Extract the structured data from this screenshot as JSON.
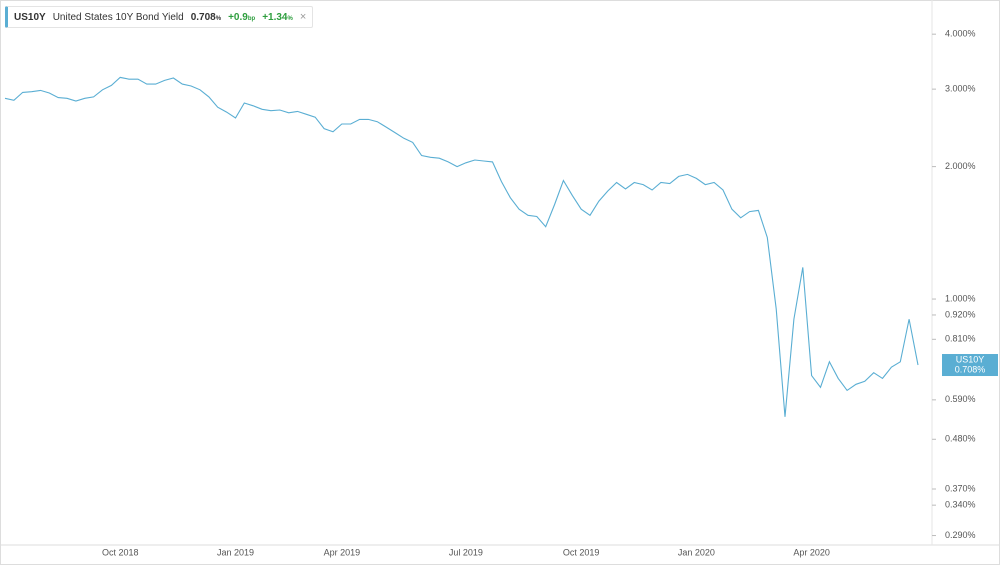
{
  "header": {
    "symbol": "US10Y",
    "name": "United States 10Y Bond Yield",
    "price": "0.708",
    "price_unit": "%",
    "change": "+0.9",
    "change_unit": "bp",
    "change_pct": "+1.34",
    "change_pct_unit": "%",
    "close": "×"
  },
  "chart_data": {
    "type": "line",
    "log_scale": true,
    "grid": false,
    "categories": [
      null,
      null,
      null,
      null,
      null,
      null,
      null,
      null,
      null,
      null,
      null,
      null,
      null,
      "Oct 2018",
      null,
      null,
      null,
      null,
      null,
      null,
      null,
      null,
      null,
      null,
      null,
      null,
      "Jan 2019",
      null,
      null,
      null,
      null,
      null,
      null,
      null,
      null,
      null,
      null,
      null,
      "Apr 2019",
      null,
      null,
      null,
      null,
      null,
      null,
      null,
      null,
      null,
      null,
      null,
      null,
      null,
      "Jul 2019",
      null,
      null,
      null,
      null,
      null,
      null,
      null,
      null,
      null,
      null,
      null,
      null,
      "Oct 2019",
      null,
      null,
      null,
      null,
      null,
      null,
      null,
      null,
      null,
      null,
      null,
      null,
      "Jan 2020",
      null,
      null,
      null,
      null,
      null,
      null,
      null,
      null,
      null,
      null,
      null,
      null,
      "Apr 2020",
      null,
      null,
      null,
      null,
      null,
      null,
      null,
      null,
      null,
      null,
      null,
      null
    ],
    "series": [
      {
        "name": "US10Y",
        "color": "#5aaed3",
        "value_label": "0.708%",
        "values": [
          2.86,
          2.83,
          2.95,
          2.96,
          2.98,
          2.94,
          2.87,
          2.86,
          2.82,
          2.86,
          2.88,
          2.99,
          3.06,
          3.19,
          3.16,
          3.16,
          3.08,
          3.08,
          3.14,
          3.18,
          3.08,
          3.05,
          2.99,
          2.88,
          2.73,
          2.66,
          2.58,
          2.79,
          2.75,
          2.7,
          2.68,
          2.69,
          2.65,
          2.67,
          2.63,
          2.59,
          2.44,
          2.4,
          2.5,
          2.5,
          2.56,
          2.56,
          2.53,
          2.46,
          2.39,
          2.32,
          2.27,
          2.12,
          2.1,
          2.09,
          2.05,
          2.0,
          2.04,
          2.07,
          2.06,
          2.05,
          1.85,
          1.7,
          1.6,
          1.55,
          1.54,
          1.46,
          1.64,
          1.86,
          1.72,
          1.6,
          1.55,
          1.67,
          1.76,
          1.84,
          1.78,
          1.84,
          1.82,
          1.77,
          1.84,
          1.83,
          1.9,
          1.92,
          1.88,
          1.82,
          1.84,
          1.77,
          1.6,
          1.53,
          1.58,
          1.59,
          1.38,
          0.95,
          0.54,
          0.9,
          1.18,
          0.67,
          0.63,
          0.72,
          0.66,
          0.62,
          0.64,
          0.65,
          0.68,
          0.66,
          0.7,
          0.72,
          0.9,
          0.708
        ]
      }
    ],
    "ylim": [
      0.276,
      4.66
    ],
    "yticks": [
      {
        "value": 4,
        "label": "4.000%"
      },
      {
        "value": 3,
        "label": "3.000%"
      },
      {
        "value": 2,
        "label": "2.000%"
      },
      {
        "value": 1,
        "label": "1.000%"
      },
      {
        "value": 0.92,
        "label": "0.920%"
      },
      {
        "value": 0.81,
        "label": "0.810%"
      },
      {
        "value": 0.59,
        "label": "0.590%"
      },
      {
        "value": 0.48,
        "label": "0.480%"
      },
      {
        "value": 0.37,
        "label": "0.370%"
      },
      {
        "value": 0.34,
        "label": "0.340%"
      },
      {
        "value": 0.29,
        "label": "0.290%"
      }
    ]
  }
}
